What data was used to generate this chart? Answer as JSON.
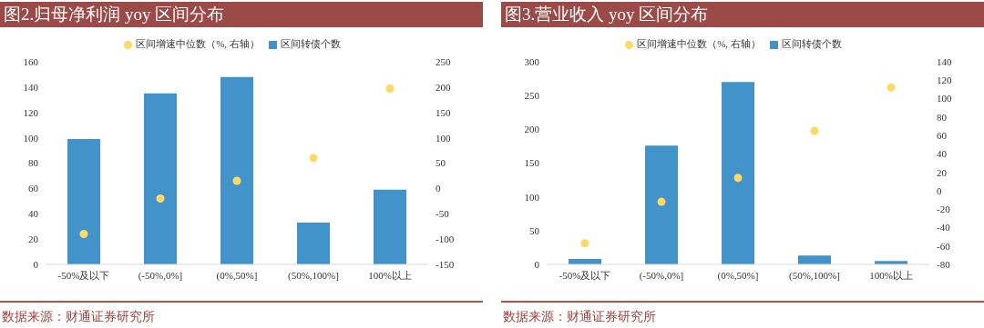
{
  "chart_data": [
    {
      "type": "bar",
      "title": "图2.归母净利润 yoy 区间分布",
      "categories": [
        "-50%及以下",
        "(-50%,0%]",
        "(0%,50%]",
        "(50%,100%]",
        "100%以上"
      ],
      "series": [
        {
          "name": "区间转债个数",
          "color": "#4393cb",
          "values": [
            99,
            135,
            148,
            33,
            59
          ]
        },
        {
          "type": "scatter",
          "axis": "y2",
          "name": "区间增速中位数（%, 右轴）",
          "color": "#ffd966",
          "values": [
            -90,
            -20,
            15,
            60,
            197
          ]
        }
      ],
      "ylim": [
        0,
        160
      ],
      "yticks": [
        0,
        20,
        40,
        60,
        80,
        100,
        120,
        140,
        160
      ],
      "y2lim": [
        -150,
        250
      ],
      "y2ticks": [
        -150,
        -100,
        -50,
        0,
        50,
        100,
        150,
        200,
        250
      ],
      "grid": false,
      "legend": "top",
      "marker": "circle",
      "annotations": [
        "数据来源：财通证券研究所"
      ]
    },
    {
      "type": "bar",
      "title": "图3.营业收入 yoy 区间分布",
      "categories": [
        "-50%及以下",
        "(-50%,0%]",
        "(0%,50%]",
        "(50%,100%]",
        "100%以上"
      ],
      "series": [
        {
          "name": "区间转债个数",
          "color": "#4393cb",
          "values": [
            8,
            176,
            270,
            13,
            5
          ]
        },
        {
          "type": "scatter",
          "axis": "y2",
          "name": "区间增速中位数（%, 右轴）",
          "color": "#ffd966",
          "values": [
            -57,
            -12,
            14,
            65,
            112
          ]
        }
      ],
      "ylim": [
        0,
        300
      ],
      "yticks": [
        0,
        50,
        100,
        150,
        200,
        250,
        300
      ],
      "y2lim": [
        -80,
        140
      ],
      "y2ticks": [
        -80,
        -60,
        -40,
        -20,
        0,
        20,
        40,
        60,
        80,
        100,
        120,
        140
      ],
      "grid": false,
      "legend": "top",
      "marker": "circle",
      "annotations": [
        "数据来源：财通证券研究所"
      ]
    }
  ]
}
